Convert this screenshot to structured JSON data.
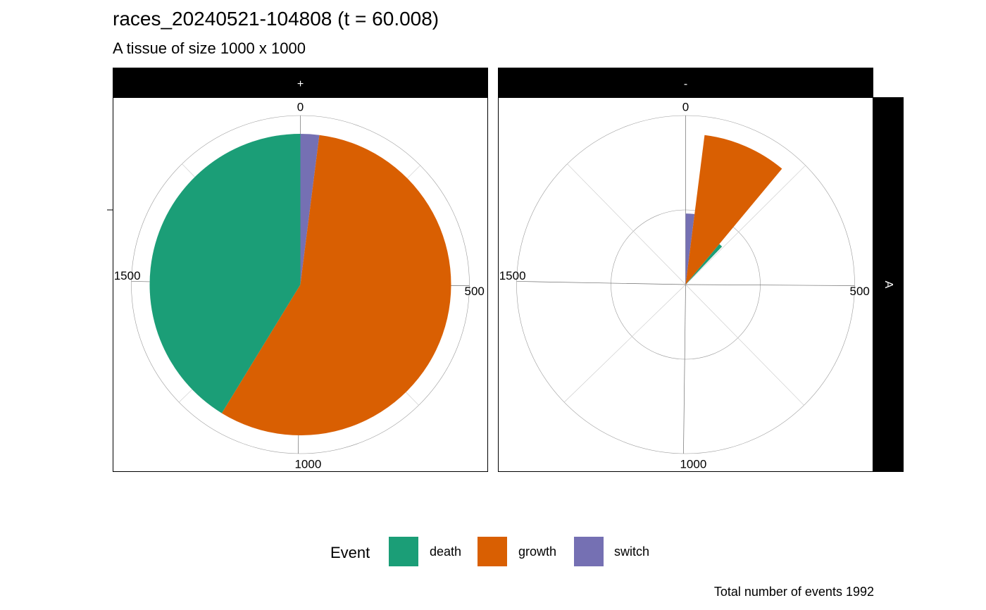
{
  "chart_data": {
    "type": "pie",
    "title": "races_20240521-104808 (t = 60.008)",
    "subtitle": "A tissue of size 1000 x 1000",
    "caption": "Total number of events 1992",
    "coord": "polar",
    "radial_axis": {
      "range": [
        0,
        1992
      ],
      "ticks": [
        "0",
        "500",
        "1000",
        "1500"
      ],
      "tick_values": [
        0,
        500,
        1000,
        1500
      ]
    },
    "facet_columns": [
      "+",
      "-"
    ],
    "facet_row": "A",
    "legend": {
      "title": "Event",
      "position": "bottom",
      "entries": [
        {
          "label": "death",
          "color": "#1B9E77"
        },
        {
          "label": "growth",
          "color": "#D95F02"
        },
        {
          "label": "switch",
          "color": "#7570B3"
        }
      ]
    },
    "panels": [
      {
        "column": "+",
        "row": "A",
        "series": [
          {
            "name": "switch",
            "value": 40,
            "color": "#7570B3"
          },
          {
            "name": "growth",
            "value": 1130,
            "color": "#D95F02"
          },
          {
            "name": "death",
            "value": 822,
            "color": "#1B9E77"
          }
        ]
      },
      {
        "column": "-",
        "row": "A",
        "series": [
          {
            "name": "switch",
            "value": 40,
            "color": "#7570B3"
          },
          {
            "name": "growth",
            "value": 180,
            "color": "#D95F02"
          },
          {
            "name": "death",
            "value": 22,
            "color": "#1B9E77"
          }
        ]
      }
    ]
  }
}
